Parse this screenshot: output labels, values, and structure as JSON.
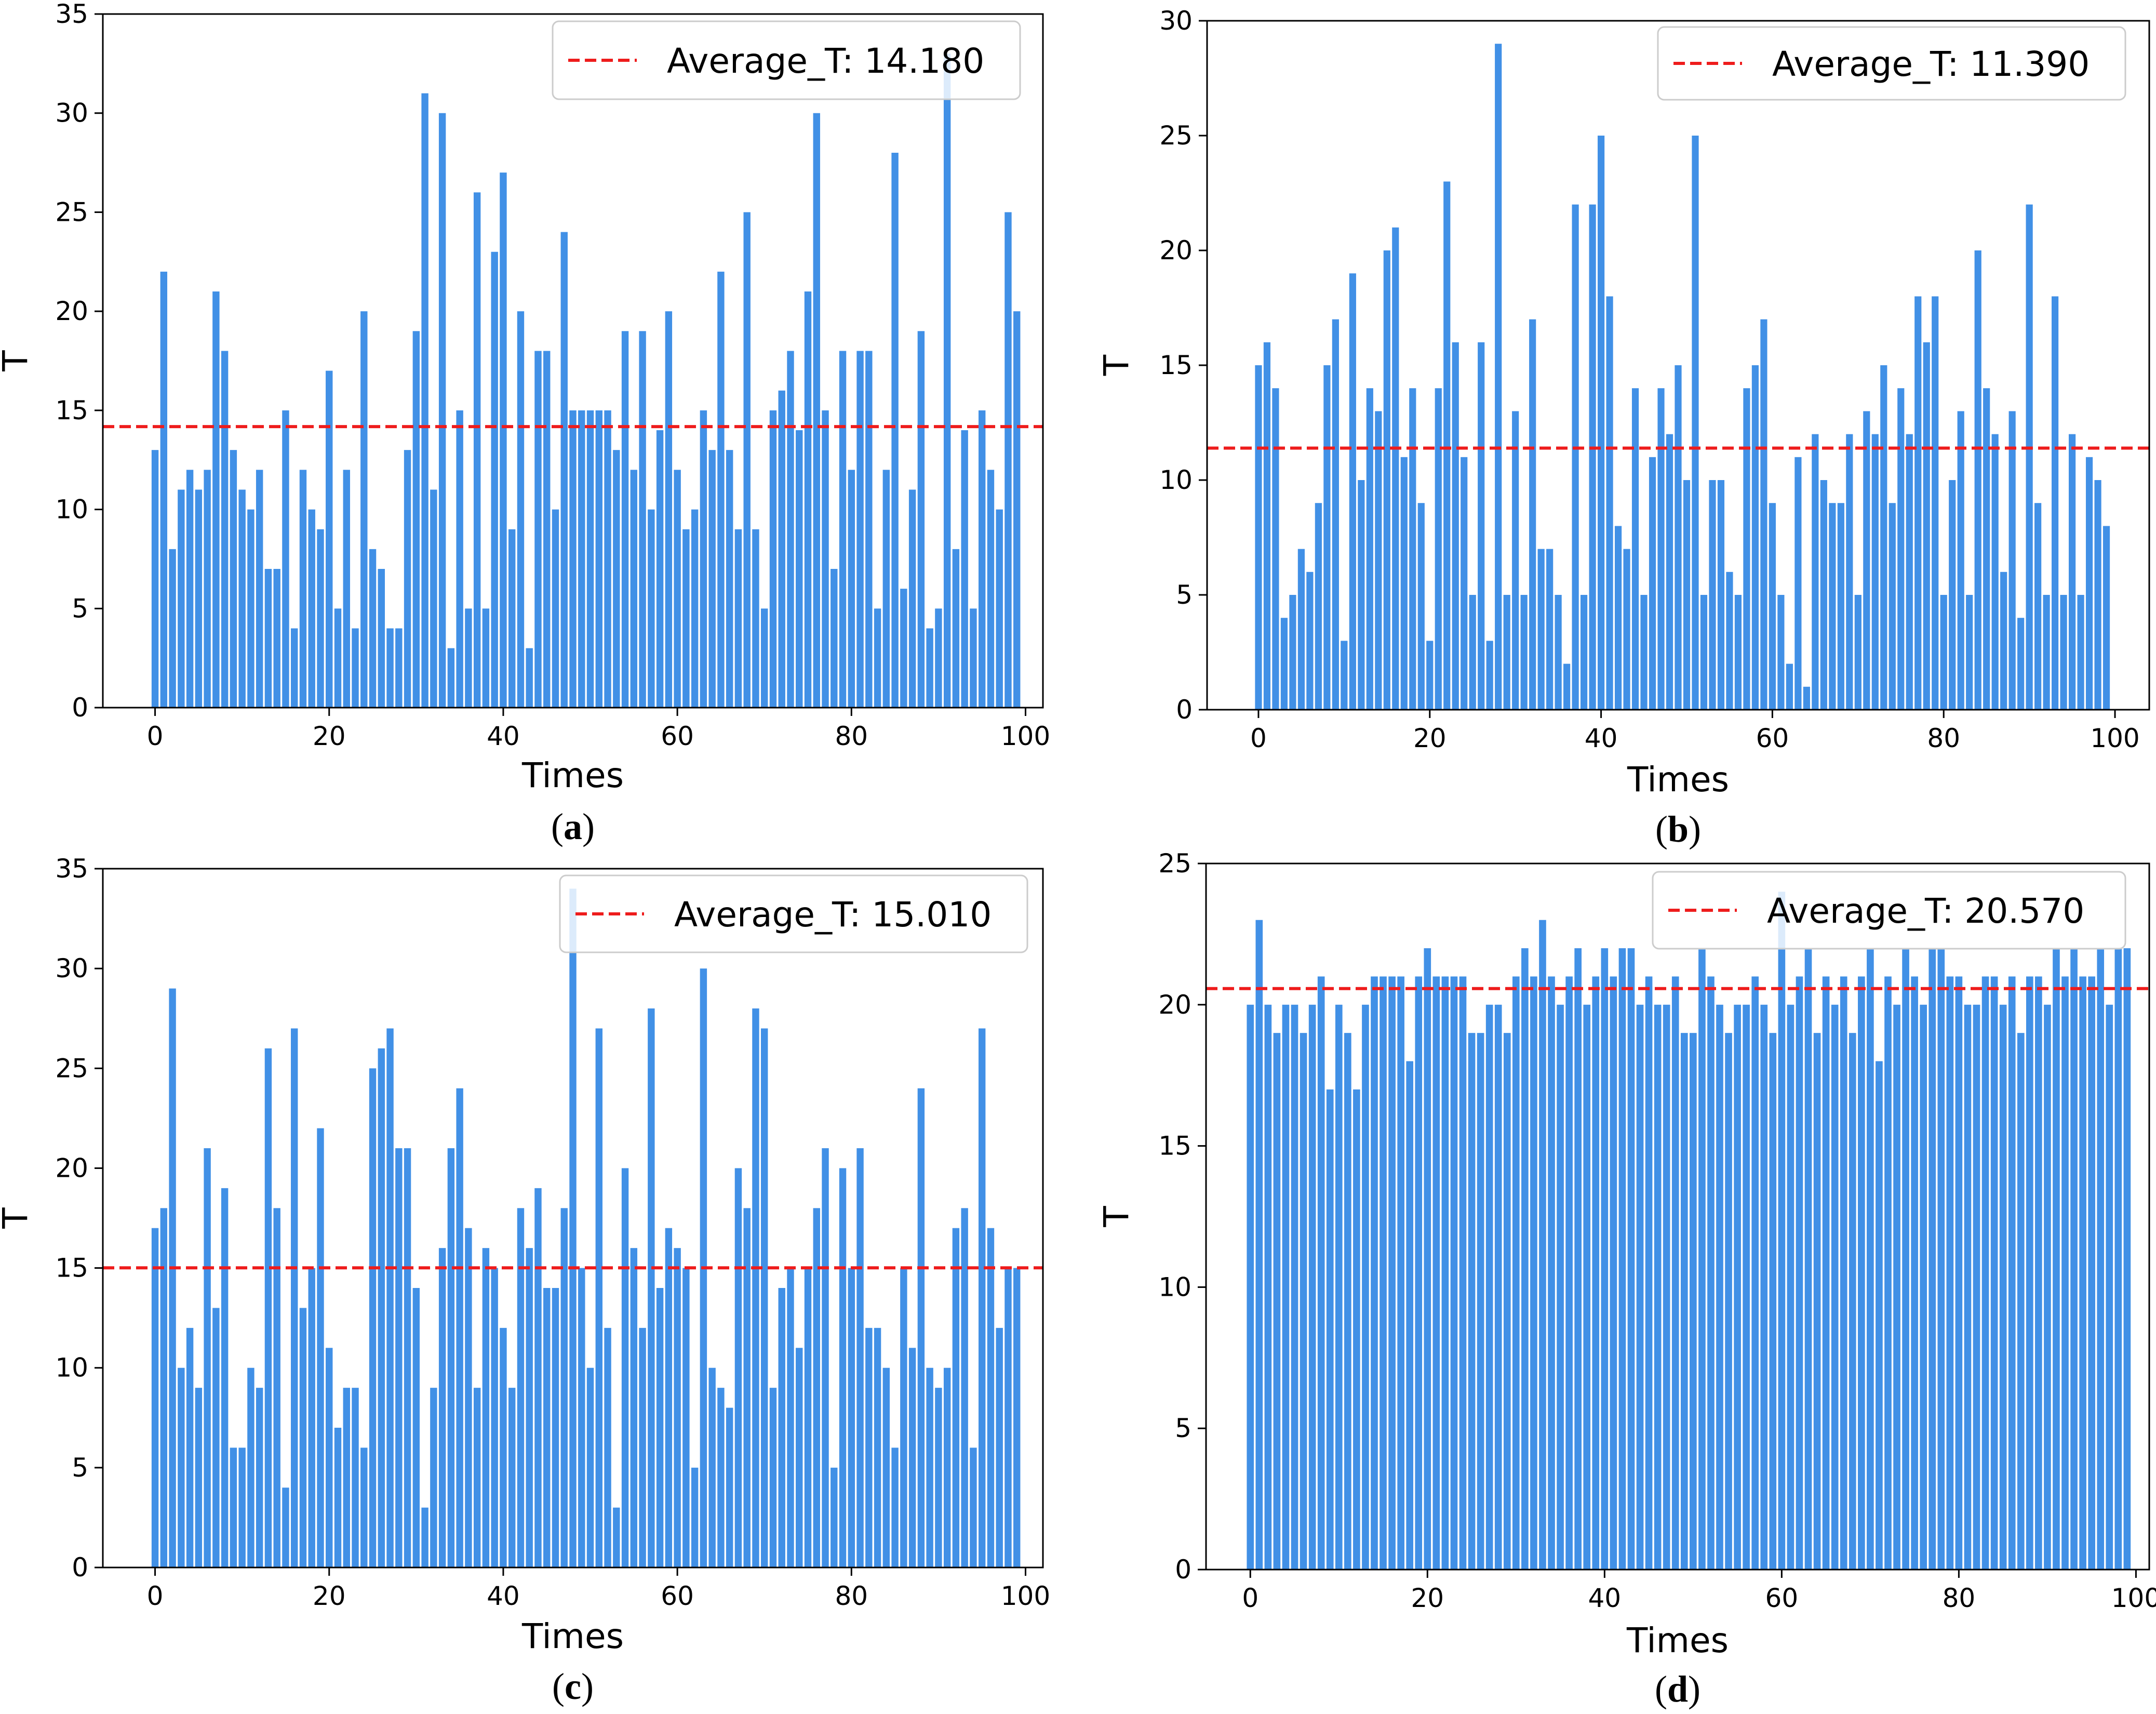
{
  "chart_data": [
    {
      "type": "bar",
      "panel": "a",
      "caption_letter": "a",
      "xlabel": "Times",
      "ylabel": "T",
      "xlim": [
        -6,
        102
      ],
      "ylim": [
        0,
        35
      ],
      "xticks": [
        0,
        20,
        40,
        60,
        80,
        100
      ],
      "yticks": [
        0,
        5,
        10,
        15,
        20,
        25,
        30,
        35
      ],
      "average_value": 14.18,
      "legend_label": "Average_T: 14.180",
      "legend_position": "top-right",
      "bar_color": "#4190e6",
      "line_color": "#ee1c1c",
      "x": [
        0,
        1,
        2,
        3,
        4,
        5,
        6,
        7,
        8,
        9,
        10,
        11,
        12,
        13,
        14,
        15,
        16,
        17,
        18,
        19,
        20,
        21,
        22,
        23,
        24,
        25,
        26,
        27,
        28,
        29,
        30,
        31,
        32,
        33,
        34,
        35,
        36,
        37,
        38,
        39,
        40,
        41,
        42,
        43,
        44,
        45,
        46,
        47,
        48,
        49,
        50,
        51,
        52,
        53,
        54,
        55,
        56,
        57,
        58,
        59,
        60,
        61,
        62,
        63,
        64,
        65,
        66,
        67,
        68,
        69,
        70,
        71,
        72,
        73,
        74,
        75,
        76,
        77,
        78,
        79,
        80,
        81,
        82,
        83,
        84,
        85,
        86,
        87,
        88,
        89,
        90,
        91,
        92,
        93,
        94,
        95,
        96,
        97,
        98,
        99
      ],
      "values": [
        13,
        22,
        8,
        11,
        12,
        11,
        12,
        21,
        18,
        13,
        11,
        10,
        12,
        7,
        7,
        15,
        4,
        12,
        10,
        9,
        17,
        5,
        12,
        4,
        20,
        8,
        7,
        4,
        4,
        13,
        19,
        31,
        11,
        30,
        3,
        15,
        5,
        26,
        5,
        23,
        27,
        9,
        20,
        3,
        18,
        18,
        10,
        24,
        15,
        15,
        15,
        15,
        15,
        13,
        19,
        12,
        19,
        10,
        14,
        20,
        12,
        9,
        10,
        15,
        13,
        22,
        13,
        9,
        25,
        9,
        5,
        15,
        16,
        18,
        14,
        21,
        30,
        15,
        7,
        18,
        12,
        18,
        18,
        5,
        12,
        28,
        6,
        11,
        19,
        4,
        5,
        33,
        8,
        14,
        5,
        15,
        12,
        10,
        25,
        20
      ]
    },
    {
      "type": "bar",
      "panel": "b",
      "caption_letter": "b",
      "xlabel": "Times",
      "ylabel": "T",
      "xlim": [
        -6,
        104
      ],
      "ylim": [
        0,
        30
      ],
      "xticks": [
        0,
        20,
        40,
        60,
        80,
        100
      ],
      "yticks": [
        0,
        5,
        10,
        15,
        20,
        25,
        30
      ],
      "average_value": 11.39,
      "legend_label": "Average_T: 11.390",
      "legend_position": "top-right",
      "bar_color": "#4190e6",
      "line_color": "#ee1c1c",
      "x": [
        0,
        1,
        2,
        3,
        4,
        5,
        6,
        7,
        8,
        9,
        10,
        11,
        12,
        13,
        14,
        15,
        16,
        17,
        18,
        19,
        20,
        21,
        22,
        23,
        24,
        25,
        26,
        27,
        28,
        29,
        30,
        31,
        32,
        33,
        34,
        35,
        36,
        37,
        38,
        39,
        40,
        41,
        42,
        43,
        44,
        45,
        46,
        47,
        48,
        49,
        50,
        51,
        52,
        53,
        54,
        55,
        56,
        57,
        58,
        59,
        60,
        61,
        62,
        63,
        64,
        65,
        66,
        67,
        68,
        69,
        70,
        71,
        72,
        73,
        74,
        75,
        76,
        77,
        78,
        79,
        80,
        81,
        82,
        83,
        84,
        85,
        86,
        87,
        88,
        89,
        90,
        91,
        92,
        93,
        94,
        95,
        96,
        97,
        98,
        99
      ],
      "values": [
        15,
        16,
        14,
        4,
        5,
        7,
        6,
        9,
        15,
        17,
        3,
        19,
        10,
        14,
        13,
        20,
        21,
        11,
        14,
        9,
        3,
        14,
        23,
        16,
        11,
        5,
        16,
        3,
        29,
        5,
        13,
        5,
        17,
        7,
        7,
        5,
        2,
        22,
        5,
        22,
        25,
        18,
        8,
        7,
        14,
        5,
        11,
        14,
        12,
        15,
        10,
        25,
        5,
        10,
        10,
        6,
        5,
        14,
        15,
        17,
        9,
        5,
        2,
        11,
        1,
        12,
        10,
        9,
        9,
        12,
        5,
        13,
        12,
        15,
        9,
        14,
        12,
        18,
        16,
        18,
        5,
        10,
        13,
        5,
        20,
        14,
        12,
        6,
        13,
        4,
        22,
        9,
        5,
        18,
        5,
        12,
        5,
        11,
        10,
        8
      ]
    },
    {
      "type": "bar",
      "panel": "c",
      "caption_letter": "c",
      "xlabel": "Times",
      "ylabel": "T",
      "xlim": [
        -6,
        102
      ],
      "ylim": [
        0,
        35
      ],
      "xticks": [
        0,
        20,
        40,
        60,
        80,
        100
      ],
      "yticks": [
        0,
        5,
        10,
        15,
        20,
        25,
        30,
        35
      ],
      "average_value": 15.01,
      "legend_label": "Average_T: 15.010",
      "legend_position": "top-right",
      "bar_color": "#4190e6",
      "line_color": "#ee1c1c",
      "x": [
        0,
        1,
        2,
        3,
        4,
        5,
        6,
        7,
        8,
        9,
        10,
        11,
        12,
        13,
        14,
        15,
        16,
        17,
        18,
        19,
        20,
        21,
        22,
        23,
        24,
        25,
        26,
        27,
        28,
        29,
        30,
        31,
        32,
        33,
        34,
        35,
        36,
        37,
        38,
        39,
        40,
        41,
        42,
        43,
        44,
        45,
        46,
        47,
        48,
        49,
        50,
        51,
        52,
        53,
        54,
        55,
        56,
        57,
        58,
        59,
        60,
        61,
        62,
        63,
        64,
        65,
        66,
        67,
        68,
        69,
        70,
        71,
        72,
        73,
        74,
        75,
        76,
        77,
        78,
        79,
        80,
        81,
        82,
        83,
        84,
        85,
        86,
        87,
        88,
        89,
        90,
        91,
        92,
        93,
        94,
        95,
        96,
        97,
        98,
        99
      ],
      "values": [
        17,
        18,
        29,
        10,
        12,
        9,
        21,
        13,
        19,
        6,
        6,
        10,
        9,
        26,
        18,
        4,
        27,
        13,
        15,
        22,
        11,
        7,
        9,
        9,
        6,
        25,
        26,
        27,
        21,
        21,
        14,
        3,
        9,
        16,
        21,
        24,
        17,
        9,
        16,
        15,
        12,
        9,
        18,
        16,
        19,
        14,
        14,
        18,
        34,
        15,
        10,
        27,
        12,
        3,
        20,
        16,
        12,
        28,
        14,
        17,
        16,
        15,
        5,
        30,
        10,
        9,
        8,
        20,
        18,
        28,
        27,
        9,
        14,
        15,
        11,
        15,
        18,
        21,
        5,
        20,
        15,
        21,
        12,
        12,
        10,
        6,
        15,
        11,
        24,
        10,
        9,
        10,
        17,
        18,
        6,
        27,
        17,
        12,
        15,
        15
      ]
    },
    {
      "type": "bar",
      "panel": "d",
      "caption_letter": "d",
      "xlabel": "Times",
      "ylabel": "T",
      "xlim": [
        -5,
        101.5
      ],
      "ylim": [
        0,
        25
      ],
      "xticks": [
        0,
        20,
        40,
        60,
        80,
        100
      ],
      "yticks": [
        0,
        5,
        10,
        15,
        20,
        25
      ],
      "average_value": 20.57,
      "legend_label": "Average_T: 20.570",
      "legend_position": "top-right",
      "bar_color": "#4190e6",
      "line_color": "#ee1c1c",
      "x": [
        0,
        1,
        2,
        3,
        4,
        5,
        6,
        7,
        8,
        9,
        10,
        11,
        12,
        13,
        14,
        15,
        16,
        17,
        18,
        19,
        20,
        21,
        22,
        23,
        24,
        25,
        26,
        27,
        28,
        29,
        30,
        31,
        32,
        33,
        34,
        35,
        36,
        37,
        38,
        39,
        40,
        41,
        42,
        43,
        44,
        45,
        46,
        47,
        48,
        49,
        50,
        51,
        52,
        53,
        54,
        55,
        56,
        57,
        58,
        59,
        60,
        61,
        62,
        63,
        64,
        65,
        66,
        67,
        68,
        69,
        70,
        71,
        72,
        73,
        74,
        75,
        76,
        77,
        78,
        79,
        80,
        81,
        82,
        83,
        84,
        85,
        86,
        87,
        88,
        89,
        90,
        91,
        92,
        93,
        94,
        95,
        96,
        97,
        98,
        99
      ],
      "values": [
        20,
        23,
        20,
        19,
        20,
        20,
        19,
        20,
        21,
        17,
        20,
        19,
        17,
        20,
        21,
        21,
        21,
        21,
        18,
        21,
        22,
        21,
        21,
        21,
        21,
        19,
        19,
        20,
        20,
        19,
        21,
        22,
        21,
        23,
        21,
        20,
        21,
        22,
        20,
        21,
        22,
        21,
        22,
        22,
        20,
        21,
        20,
        20,
        21,
        19,
        19,
        22,
        21,
        20,
        19,
        20,
        20,
        21,
        20,
        19,
        24,
        20,
        21,
        22,
        19,
        21,
        20,
        21,
        19,
        21,
        22,
        18,
        21,
        20,
        22,
        21,
        20,
        22,
        22,
        21,
        21,
        20,
        20,
        21,
        21,
        20,
        21,
        19,
        21,
        21,
        20,
        22,
        21,
        22,
        21,
        21,
        22,
        20,
        22,
        22
      ]
    }
  ]
}
